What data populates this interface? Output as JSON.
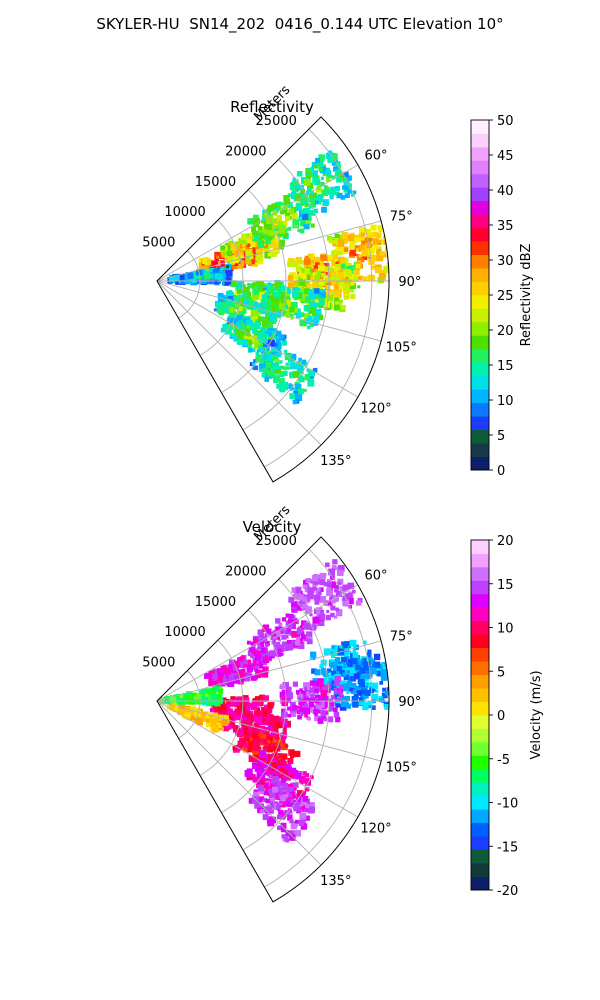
{
  "figure_title": "SKYLER-HU  SN14_202  0416_0.144 UTC Elevation 10°",
  "colors": {
    "reflectivity_cmap": [
      "#0d1f6b",
      "#163a4a",
      "#0f5a3a",
      "#1a3dff",
      "#0a78ff",
      "#00b4ff",
      "#00e0e8",
      "#00f0b0",
      "#20f060",
      "#50e000",
      "#8cf000",
      "#c8f000",
      "#f0f000",
      "#ffd000",
      "#ffb000",
      "#ff8000",
      "#ff3000",
      "#ff0030",
      "#ff0080",
      "#e000e0",
      "#a040ff",
      "#c060ff",
      "#e080ff",
      "#f0a0ff",
      "#fbd0ff",
      "#fff0ff"
    ],
    "velocity_cmap": [
      "#0d1f6b",
      "#0f3a3a",
      "#0f5a3a",
      "#1a3dff",
      "#0060ff",
      "#00a8ff",
      "#00e8ff",
      "#00f0c0",
      "#00ff60",
      "#20ff00",
      "#70ff30",
      "#b0ff30",
      "#e0ff30",
      "#ffe000",
      "#ffc000",
      "#ffa000",
      "#ff7000",
      "#ff4000",
      "#ff0020",
      "#ff0060",
      "#ff00c0",
      "#e000ff",
      "#c040ff",
      "#d070ff",
      "#f0a0ff",
      "#fcd0ff"
    ]
  },
  "chart_data": [
    {
      "type": "heatmap",
      "projection": "polar-sector",
      "title": "Reflectivity",
      "radial_axis_label": "Meters",
      "radial_ticks": [
        5000,
        10000,
        15000,
        20000,
        25000
      ],
      "r_max": 27000,
      "azimuth_range": [
        45,
        150
      ],
      "azimuth_ticks": [
        60,
        75,
        90,
        105,
        120,
        135
      ],
      "azimuth_tick_labels": [
        "60°",
        "75°",
        "90°",
        "105°",
        "120°",
        "135°"
      ],
      "grid": true,
      "colorbar": {
        "label": "Reflectivity dBZ",
        "min": 0,
        "max": 50,
        "ticks": [
          0,
          5,
          10,
          15,
          20,
          25,
          30,
          35,
          40,
          45,
          50
        ]
      },
      "echo_regions": [
        {
          "az": 73,
          "r": 9000,
          "value": 35
        },
        {
          "az": 70,
          "r": 12000,
          "value": 28
        },
        {
          "az": 64,
          "r": 16000,
          "value": 22
        },
        {
          "az": 88,
          "r": 19000,
          "value": 32
        },
        {
          "az": 92,
          "r": 20000,
          "value": 27
        },
        {
          "az": 83,
          "r": 24000,
          "value": 30
        },
        {
          "az": 98,
          "r": 12000,
          "value": 22
        },
        {
          "az": 110,
          "r": 11000,
          "value": 20
        },
        {
          "az": 120,
          "r": 13000,
          "value": 19
        },
        {
          "az": 100,
          "r": 16000,
          "value": 20
        },
        {
          "az": 85,
          "r": 5000,
          "value": 16
        },
        {
          "az": 125,
          "r": 18000,
          "value": 18
        },
        {
          "az": 60,
          "r": 22000,
          "value": 19
        }
      ]
    },
    {
      "type": "heatmap",
      "projection": "polar-sector",
      "title": "Velocity",
      "radial_axis_label": "Meters",
      "radial_ticks": [
        5000,
        10000,
        15000,
        20000,
        25000
      ],
      "r_max": 27000,
      "azimuth_range": [
        45,
        150
      ],
      "azimuth_ticks": [
        60,
        75,
        90,
        105,
        120,
        135
      ],
      "azimuth_tick_labels": [
        "60°",
        "75°",
        "90°",
        "105°",
        "120°",
        "135°"
      ],
      "grid": true,
      "colorbar": {
        "label": "Velocity (m/s)",
        "min": -20,
        "max": 20,
        "ticks": [
          -20,
          -15,
          -10,
          -5,
          0,
          5,
          10,
          15,
          20
        ]
      },
      "echo_regions": [
        {
          "az": 70,
          "r": 10000,
          "value": 13
        },
        {
          "az": 63,
          "r": 16000,
          "value": 14
        },
        {
          "az": 58,
          "r": 23000,
          "value": 15
        },
        {
          "az": 80,
          "r": 22000,
          "value": -11
        },
        {
          "az": 85,
          "r": 24000,
          "value": -12
        },
        {
          "az": 90,
          "r": 18000,
          "value": 14
        },
        {
          "az": 95,
          "r": 10000,
          "value": 10
        },
        {
          "az": 105,
          "r": 12000,
          "value": 11
        },
        {
          "az": 115,
          "r": 14000,
          "value": 9
        },
        {
          "az": 123,
          "r": 17000,
          "value": 12
        },
        {
          "az": 110,
          "r": 5000,
          "value": 2
        },
        {
          "az": 130,
          "r": 19000,
          "value": 14
        },
        {
          "az": 85,
          "r": 4000,
          "value": -6
        }
      ]
    }
  ]
}
